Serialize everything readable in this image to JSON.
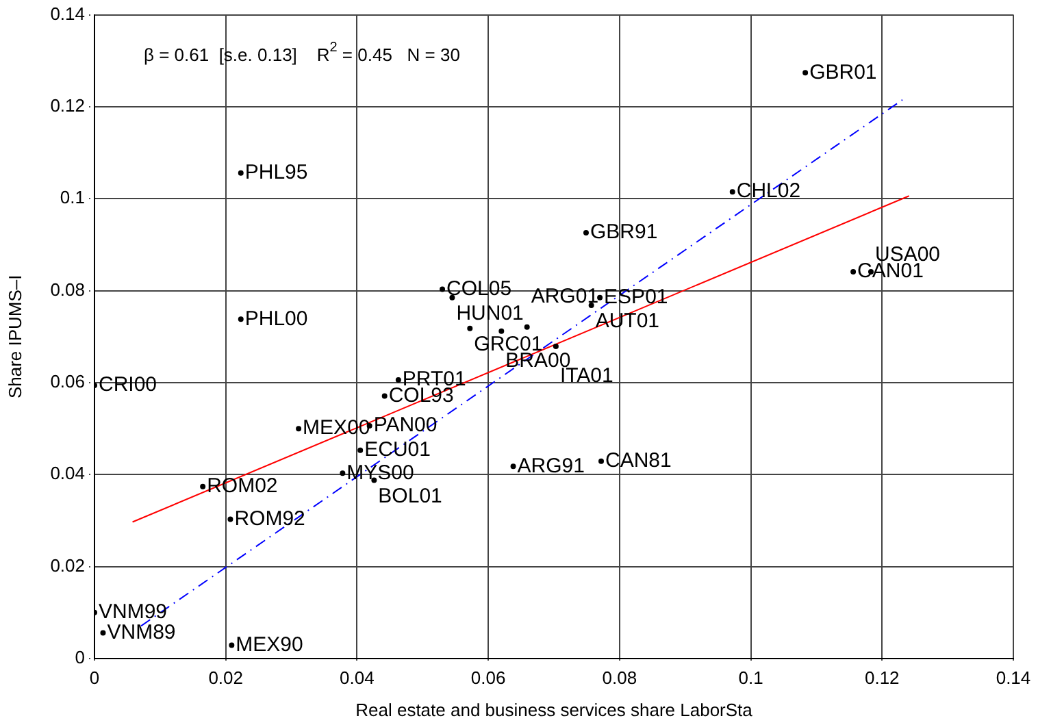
{
  "chart_data": {
    "type": "scatter",
    "xlabel": "Real estate and business services share LaborSta",
    "ylabel": "Share IPUMS–I",
    "annotations": [
      "β = 0.61  [s.e. 0.13]    R$^{2}$ = 0.45   N = 30"
    ],
    "xlim": [
      0,
      0.14
    ],
    "xticks": [
      0,
      0.02,
      0.04,
      0.06,
      0.08,
      0.1,
      0.12,
      0.14
    ],
    "ylim": [
      0,
      0.14
    ],
    "yticks": [
      0,
      0.02,
      0.04,
      0.06,
      0.08,
      0.1,
      0.12,
      0.14
    ],
    "grid": true,
    "legend": false,
    "series": [
      {
        "type": "scatter",
        "color": "#000000",
        "marker": "circle",
        "x": [
          0.1083,
          0.0223,
          0.0972,
          0.0749,
          0.053,
          0.0545,
          0.1156,
          0.1183,
          0.077,
          0.0757,
          0.0572,
          0.062,
          0.0659,
          0.0703,
          0.0223,
          0.0,
          0.0463,
          0.0442,
          0.0311,
          0.0419,
          0.0405,
          0.0378,
          0.0426,
          0.0638,
          0.0772,
          0.0165,
          0.0207,
          0.0,
          0.0013,
          0.0209
        ],
        "values": [
          0.1274,
          0.1056,
          0.1015,
          0.0926,
          0.0803,
          0.0785,
          0.0841,
          0.0841,
          0.0785,
          0.0768,
          0.0718,
          0.0712,
          0.0721,
          0.0679,
          0.0738,
          0.0594,
          0.0606,
          0.0571,
          0.05,
          0.0506,
          0.0453,
          0.0403,
          0.0388,
          0.0418,
          0.0429,
          0.0374,
          0.0303,
          0.01,
          0.0056,
          0.0029
        ],
        "value_labels": [
          "GBR01",
          "PHL95",
          "CHL02",
          "GBR91",
          "COL05",
          "HUN01",
          "CAN01",
          "USA00",
          "ESP01",
          "AUT01",
          "GRC01",
          "BRA00",
          "ARG01",
          "ITA01",
          "PHL00",
          "CRI00",
          "PRT01",
          "COL93",
          "MEX00",
          "PAN00",
          "ECU01",
          "MYS00",
          "BOL01",
          "ARG91",
          "CAN81",
          "ROM02",
          "ROM92",
          "VNM99",
          "VNM89",
          "MEX90"
        ]
      },
      {
        "type": "line",
        "color": "#ff0000",
        "line_style": "solid",
        "x": [
          0.0058,
          0.1241
        ],
        "values": [
          0.0297,
          0.1006
        ]
      },
      {
        "type": "line",
        "color": "#0000ff",
        "line_style": "dashdot",
        "x": [
          0.0071,
          0.1231
        ],
        "values": [
          0.0071,
          0.1215
        ]
      }
    ]
  }
}
